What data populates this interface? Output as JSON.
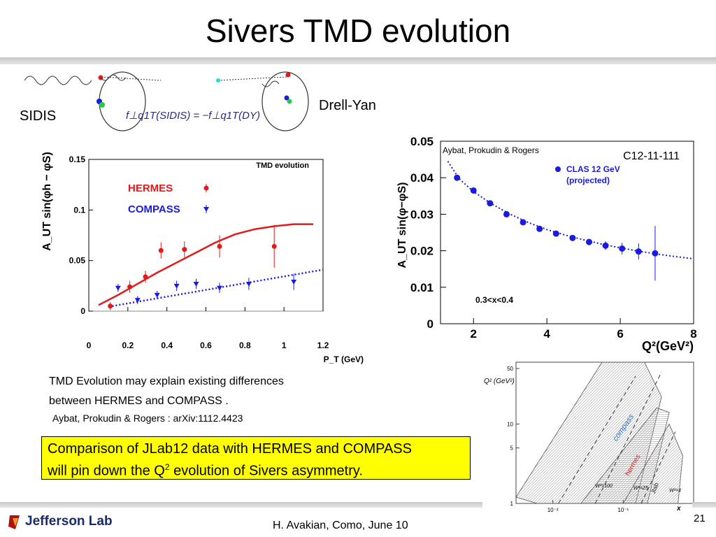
{
  "slide": {
    "title": "Sivers TMD evolution",
    "label_sidis": "SIDIS",
    "label_drell_yan": "Drell-Yan",
    "sivers_relation": "f⊥q1T(SIDIS) = −f⊥q1T(DY)",
    "body_text_line1": "TMD Evolution may explain existing differences",
    "body_text_line2": "between HERMES and COMPASS .",
    "reference": "Aybat, Prokudin & Rogers : arXiv:1112.4423",
    "highlight_line1": "Comparison of JLab12 data with HERMES and COMPASS",
    "highlight_line2_pre": "will pin down the Q",
    "highlight_sup": "2",
    "highlight_line2_post": " evolution of Sivers asymmetry.",
    "footer_text": "H. Avakian, Como,  June 10",
    "page_number": "21",
    "logo_text": "Jefferson Lab",
    "colors": {
      "red": "#e11a1a",
      "blue": "#1a1ae0",
      "yellow_box": "#ffff00"
    }
  },
  "chart_data": [
    {
      "type": "scatter",
      "title": "TMD evolution",
      "ylabel": "A_UT sin(φh − φS)",
      "xlabel": "P_T (GeV)",
      "xlim": [
        0,
        1.2
      ],
      "ylim": [
        0,
        0.15
      ],
      "xticks": [
        "0",
        "0.2",
        "0.4",
        "0.6",
        "0.8",
        "1",
        "1.2"
      ],
      "yticks": [
        "0",
        "0.05",
        "0.1",
        "0.15"
      ],
      "series": [
        {
          "name": "HERMES",
          "color": "#e11a1a",
          "marker": "circle",
          "x": [
            0.11,
            0.21,
            0.29,
            0.37,
            0.49,
            0.67,
            0.95
          ],
          "y": [
            0.005,
            0.024,
            0.034,
            0.06,
            0.061,
            0.064,
            0.064
          ],
          "err": [
            0.004,
            0.006,
            0.006,
            0.008,
            0.008,
            0.011,
            0.021
          ]
        },
        {
          "name": "COMPASS",
          "color": "#1a1ae0",
          "marker": "triangle-down",
          "x": [
            0.15,
            0.25,
            0.35,
            0.45,
            0.55,
            0.67,
            0.82,
            1.05
          ],
          "y": [
            0.023,
            0.011,
            0.016,
            0.025,
            0.027,
            0.023,
            0.027,
            0.029
          ],
          "err": [
            0.004,
            0.004,
            0.004,
            0.005,
            0.005,
            0.005,
            0.006,
            0.008
          ]
        }
      ],
      "curves": [
        {
          "series": "HERMES",
          "style": "solid",
          "x": [
            0.05,
            0.15,
            0.25,
            0.35,
            0.45,
            0.55,
            0.65,
            0.75,
            0.85,
            0.95,
            1.05,
            1.15
          ],
          "y": [
            0.006,
            0.016,
            0.027,
            0.038,
            0.048,
            0.058,
            0.068,
            0.076,
            0.081,
            0.084,
            0.086,
            0.086
          ]
        },
        {
          "series": "COMPASS",
          "style": "dotted",
          "x": [
            0.12,
            1.2
          ],
          "y": [
            0.005,
            0.041
          ]
        }
      ]
    },
    {
      "type": "scatter",
      "annotation": "Aybat, Prokudin & Rogers",
      "label": "C12-11-111",
      "ylabel": "A_UT sin(φ−φS)",
      "xlabel": "Q²(GeV²)",
      "note": "0.3<x<0.4",
      "xlim": [
        1.1,
        8
      ],
      "ylim": [
        0,
        0.05
      ],
      "xticks": [
        "2",
        "4",
        "6",
        "8"
      ],
      "yticks": [
        "0",
        "0.01",
        "0.02",
        "0.03",
        "0.04",
        "0.05"
      ],
      "series": [
        {
          "name": "CLAS 12 GeV (projected)",
          "color": "#1a1ae0",
          "marker": "circle",
          "x": [
            1.55,
            2.0,
            2.45,
            2.9,
            3.35,
            3.8,
            4.25,
            4.7,
            5.15,
            5.6,
            6.05,
            6.5,
            6.95
          ],
          "y": [
            0.04,
            0.0365,
            0.033,
            0.03,
            0.0278,
            0.026,
            0.0247,
            0.0235,
            0.0224,
            0.0214,
            0.0206,
            0.0198,
            0.0193
          ],
          "err": [
            0.0005,
            0.0005,
            0.0005,
            0.0005,
            0.0006,
            0.0006,
            0.0007,
            0.0008,
            0.0009,
            0.0012,
            0.0016,
            0.0022,
            0.0075
          ]
        }
      ],
      "curves": [
        {
          "style": "dotted",
          "x": [
            1.3,
            1.6,
            2,
            2.5,
            3,
            3.5,
            4,
            4.5,
            5,
            5.5,
            6,
            6.5,
            7,
            7.5,
            8
          ],
          "y": [
            0.0445,
            0.0398,
            0.0362,
            0.0328,
            0.03,
            0.0277,
            0.0258,
            0.0243,
            0.023,
            0.0218,
            0.0208,
            0.0199,
            0.0191,
            0.0184,
            0.0178
          ]
        }
      ]
    },
    {
      "type": "area",
      "ylabel": "Q² (GeV²)",
      "xlabel": "x",
      "xscale": "log",
      "yscale": "log",
      "xlim": [
        0.003,
        1
      ],
      "ylim": [
        1,
        60
      ],
      "xticks": [
        "10⁻²",
        "10⁻¹"
      ],
      "yticks": [
        "1",
        "5",
        "10",
        "50"
      ],
      "regions": [
        "compass",
        "hermes",
        "Jlab"
      ],
      "line_labels": [
        "W²=100",
        "W²=25",
        "W²=4"
      ]
    }
  ]
}
